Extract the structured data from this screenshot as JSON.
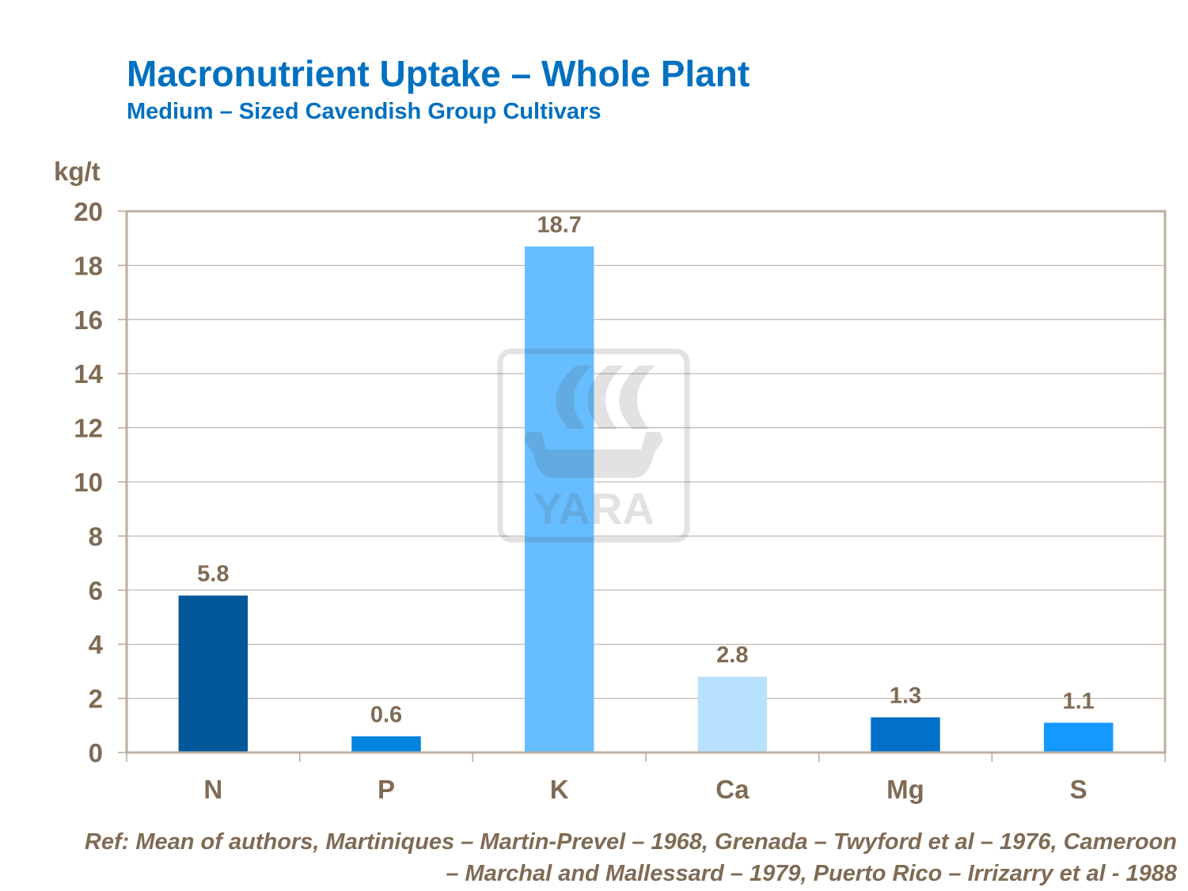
{
  "title": "Macronutrient Uptake – Whole Plant",
  "subtitle": "Medium – Sized Cavendish Group Cultivars",
  "reference": "Ref: Mean of authors, Martiniques – Martin-Prevel – 1968, Grenada – Twyford et al – 1976, Cameroon – Marchal and Mallessard – 1979, Puerto Rico – Irrizarry et al - 1988",
  "watermark": "YARA",
  "colors": {
    "text": "#7F6B55",
    "title": "#0070C0",
    "axis": "#BBAFA3",
    "grid": "#B5A99D"
  },
  "chart_data": {
    "type": "bar",
    "title": "Macronutrient Uptake – Whole Plant",
    "subtitle": "Medium – Sized Cavendish Group Cultivars",
    "xlabel": "",
    "ylabel": "kg/t",
    "ylim": [
      0,
      20
    ],
    "yticks": [
      0,
      2,
      4,
      6,
      8,
      10,
      12,
      14,
      16,
      18,
      20
    ],
    "grid": true,
    "categories": [
      "N",
      "P",
      "K",
      "Ca",
      "Mg",
      "S"
    ],
    "values": [
      5.8,
      0.6,
      18.7,
      2.8,
      1.3,
      1.1
    ],
    "data_labels": [
      "5.8",
      "0.6",
      "18.7",
      "2.8",
      "1.3",
      "1.1"
    ],
    "bar_colors": [
      "#00589A",
      "#0082E0",
      "#66BDFF",
      "#B8E0FF",
      "#0070C8",
      "#1399FF"
    ]
  }
}
